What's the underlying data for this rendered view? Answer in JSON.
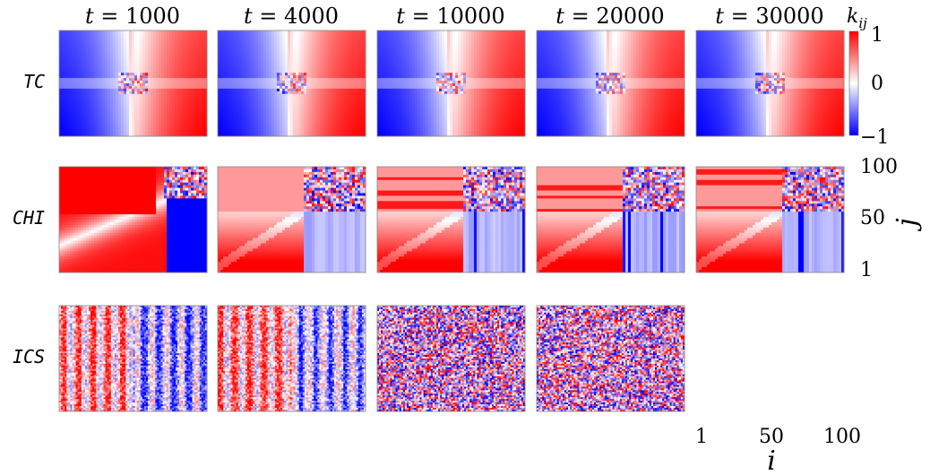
{
  "chart_data": {
    "type": "heatmap",
    "grid": {
      "rows": 3,
      "cols": 5
    },
    "column_labels": [
      {
        "var": "t",
        "eq": "=",
        "value": "1000"
      },
      {
        "var": "t",
        "eq": "=",
        "value": "4000"
      },
      {
        "var": "t",
        "eq": "=",
        "value": "10000"
      },
      {
        "var": "t",
        "eq": "=",
        "value": "20000"
      },
      {
        "var": "t",
        "eq": "=",
        "value": "30000"
      }
    ],
    "row_labels": [
      "TC",
      "CHI",
      "ICS"
    ],
    "colorbar": {
      "label": "k",
      "label_sub": "ij",
      "ticks": [
        "1",
        "0",
        "−1"
      ],
      "range": [
        -1,
        1
      ],
      "colors": {
        "low": "#0000ff",
        "mid": "#ffffff",
        "high": "#ff0000"
      }
    },
    "x_axis": {
      "label": "i",
      "ticks": [
        "1",
        "50",
        "100"
      ],
      "range": [
        1,
        100
      ]
    },
    "y_axis": {
      "label": "j",
      "ticks": [
        "100",
        "50",
        "1"
      ],
      "range": [
        1,
        100
      ]
    },
    "missing_panels": [
      [
        2,
        4
      ]
    ]
  }
}
